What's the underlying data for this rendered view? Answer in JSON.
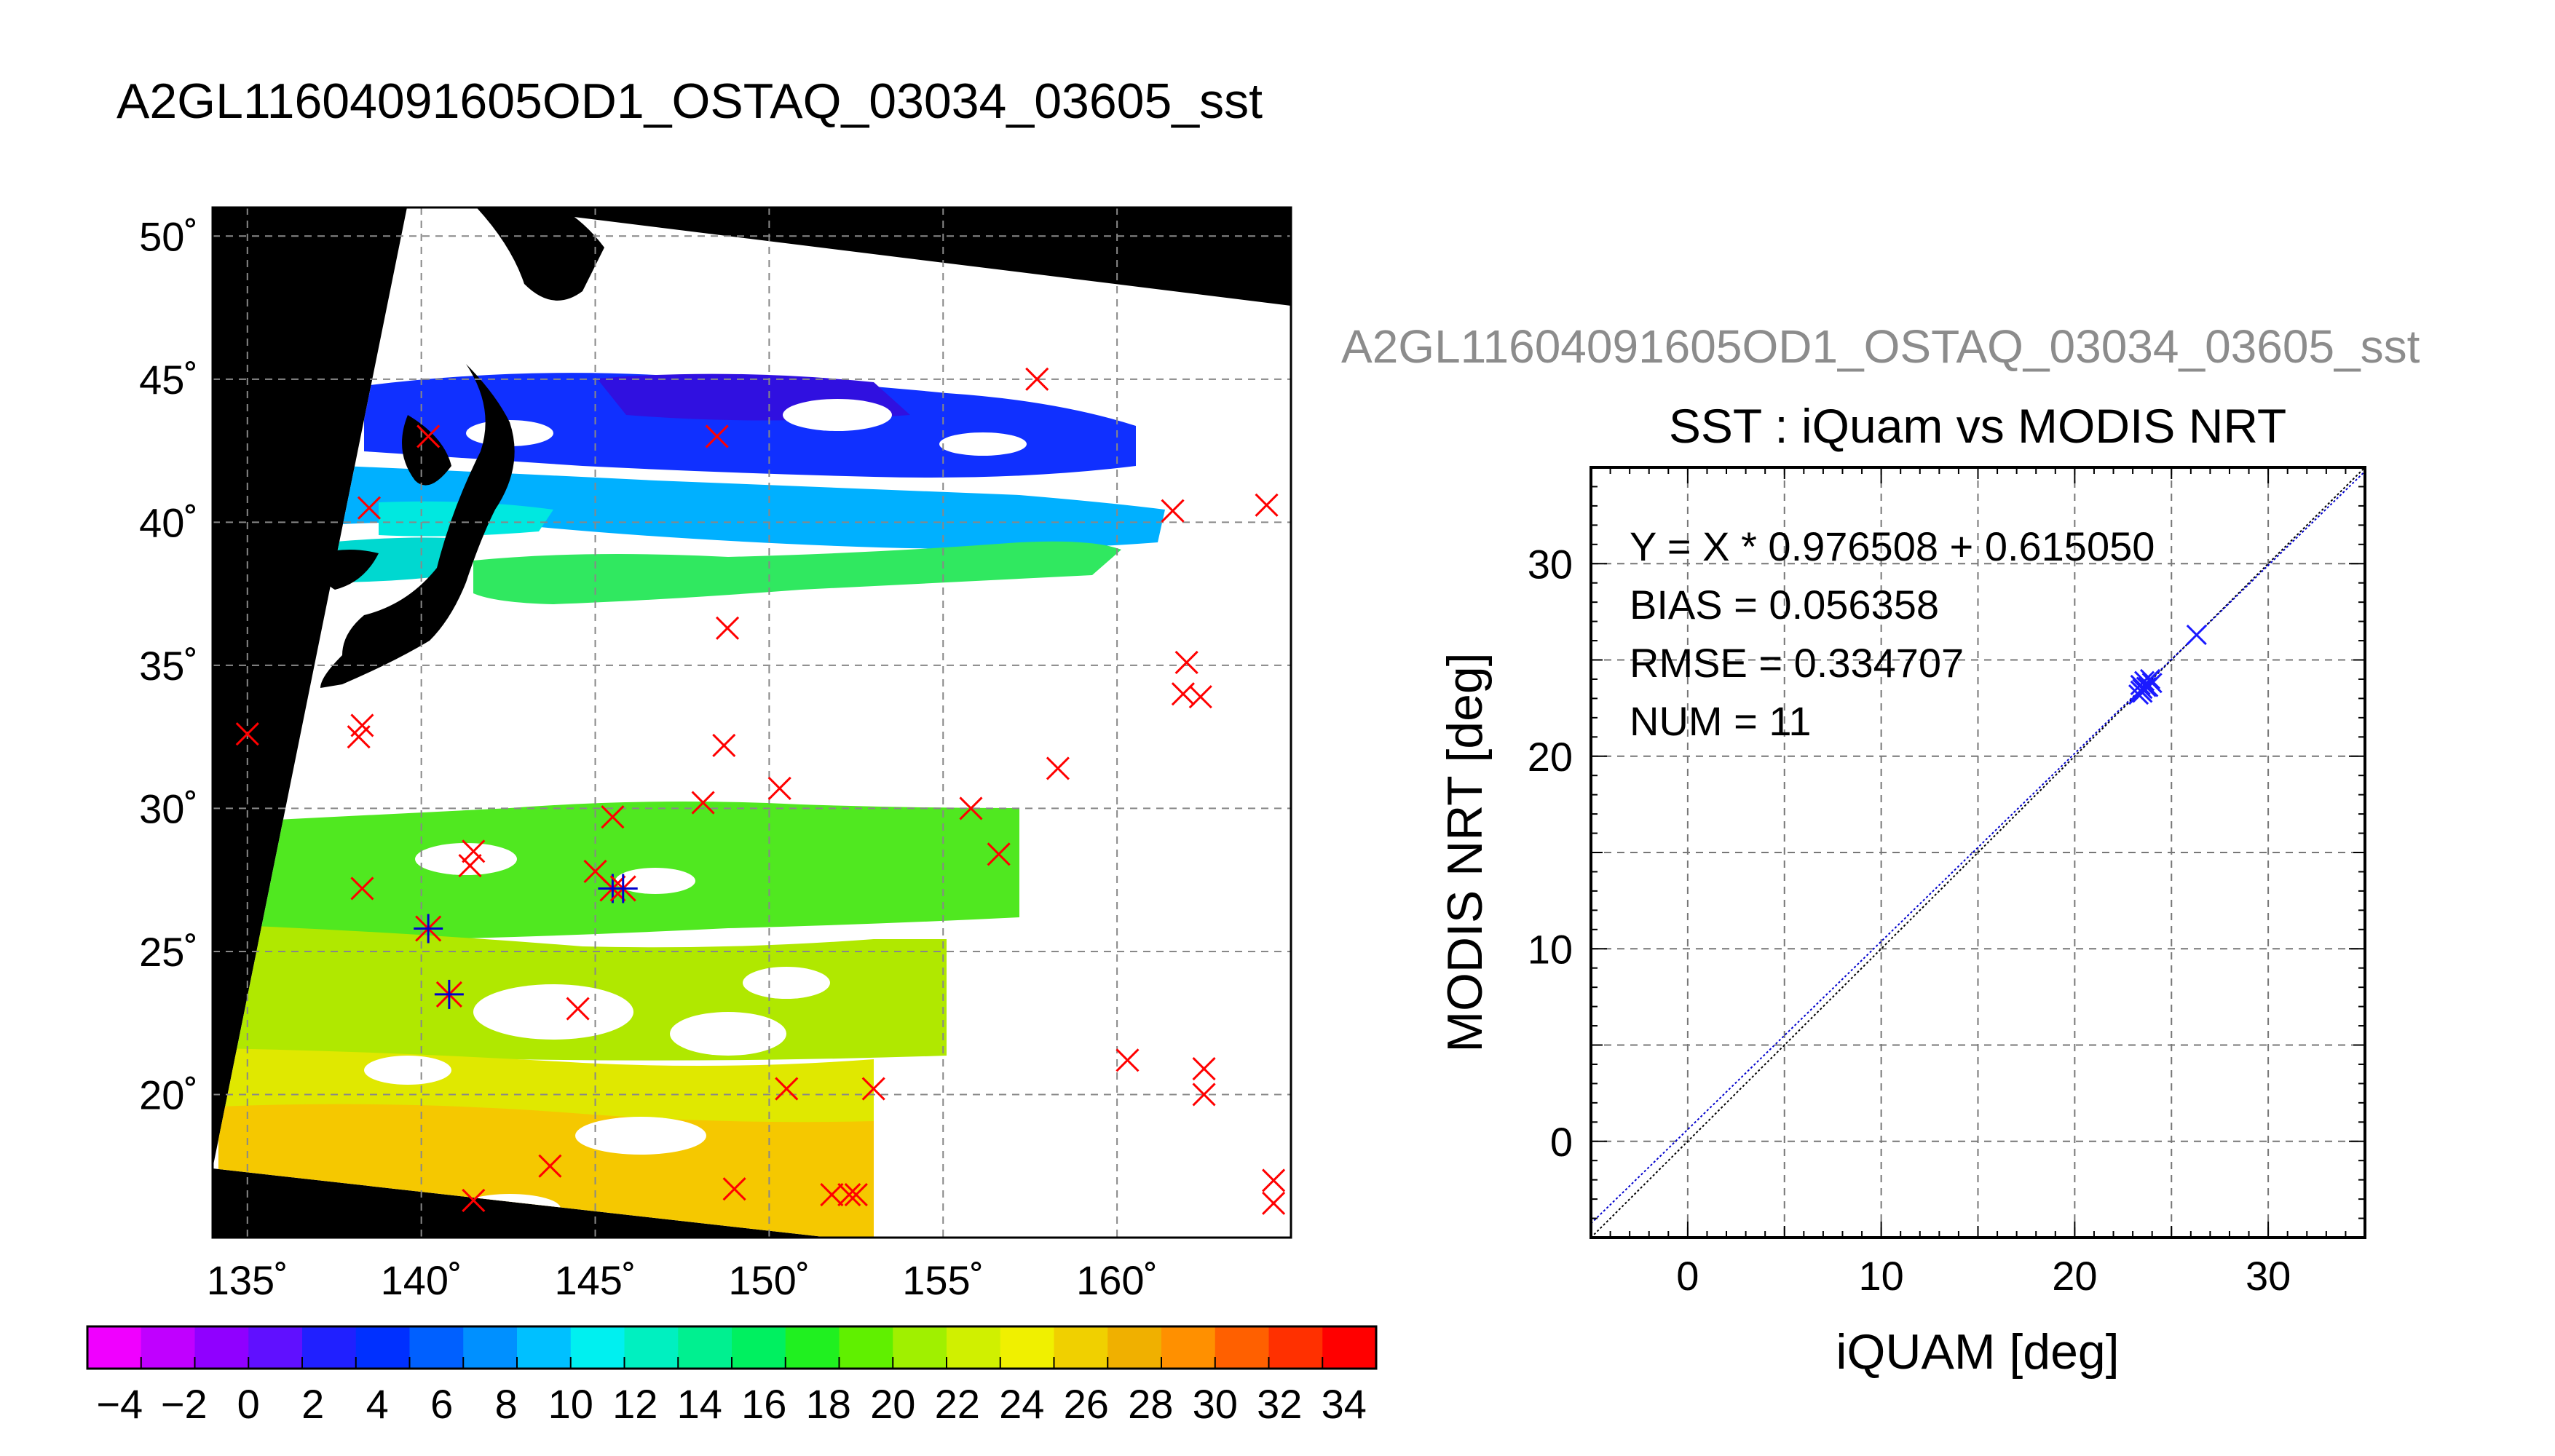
{
  "main_title": "A2GL11604091605OD1_OSTAQ_03034_03605_sst",
  "map": {
    "lon_ticks": [
      "135˚",
      "140˚",
      "145˚",
      "150˚",
      "155˚",
      "160˚"
    ],
    "lat_ticks": [
      "50˚",
      "45˚",
      "40˚",
      "35˚",
      "30˚",
      "25˚",
      "20˚"
    ],
    "colorbar": {
      "labels": [
        "−4",
        "−2",
        "0",
        "2",
        "4",
        "6",
        "8",
        "10",
        "12",
        "14",
        "16",
        "18",
        "20",
        "22",
        "24",
        "26",
        "28",
        "30",
        "32",
        "34"
      ],
      "colors": [
        "#f000ff",
        "#c000ff",
        "#9000ff",
        "#6010ff",
        "#2020ff",
        "#0030ff",
        "#0060ff",
        "#0090ff",
        "#00c0ff",
        "#00f0f0",
        "#00f0c0",
        "#00f090",
        "#00f060",
        "#20f020",
        "#60f000",
        "#a0f000",
        "#d0f000",
        "#f0f000",
        "#f0d000",
        "#f0b000",
        "#ff9000",
        "#ff6000",
        "#ff3000",
        "#ff0000"
      ]
    },
    "markers_red": [
      [
        135,
        32.6
      ],
      [
        138.2,
        32.5
      ],
      [
        138.3,
        32.9
      ],
      [
        138.3,
        27.2
      ],
      [
        138.5,
        40.5
      ],
      [
        140.2,
        43
      ],
      [
        141.4,
        28
      ],
      [
        141.5,
        28.5
      ],
      [
        141.5,
        16.3
      ],
      [
        143.7,
        17.5
      ],
      [
        144.5,
        23
      ],
      [
        145,
        27.8
      ],
      [
        145.5,
        29.7
      ],
      [
        148.1,
        30.2
      ],
      [
        148.5,
        43
      ],
      [
        148.7,
        32.2
      ],
      [
        148.8,
        36.3
      ],
      [
        149,
        16.7
      ],
      [
        150.3,
        30.7
      ],
      [
        150.5,
        20.2
      ],
      [
        151.8,
        16.5
      ],
      [
        152.3,
        16.5
      ],
      [
        152.5,
        16.5
      ],
      [
        153,
        20.2
      ],
      [
        155.8,
        30
      ],
      [
        156.6,
        28.4
      ],
      [
        157.7,
        45
      ],
      [
        158.3,
        31.4
      ],
      [
        160.3,
        21.2
      ],
      [
        161.6,
        40.4
      ],
      [
        161.9,
        34
      ],
      [
        162,
        35.1
      ],
      [
        162.4,
        33.9
      ],
      [
        162.5,
        20
      ],
      [
        162.5,
        20.9
      ],
      [
        164.3,
        40.6
      ],
      [
        164.5,
        17
      ],
      [
        164.5,
        16.2
      ]
    ],
    "markers_match": [
      [
        140.2,
        25.8
      ],
      [
        140.8,
        23.5
      ],
      [
        145.5,
        27.2
      ],
      [
        145.8,
        27.2
      ]
    ]
  },
  "scatter": {
    "header": "A2GL11604091605OD1_OSTAQ_03034_03605_sst",
    "title": "SST : iQuam vs MODIS NRT",
    "xlabel": "iQUAM [deg]",
    "ylabel": "MODIS NRT [deg]",
    "xticks": [
      "0",
      "10",
      "20",
      "30"
    ],
    "yticks": [
      "0",
      "10",
      "20",
      "30"
    ],
    "stats": {
      "fit": "Y = X * 0.976508 + 0.615050",
      "bias": "BIAS = 0.056358",
      "rmse": "RMSE = 0.334707",
      "num": "NUM = 11"
    }
  },
  "chart_data": [
    {
      "type": "heatmap",
      "title": "A2GL11604091605OD1_OSTAQ_03034_03605_sst",
      "xlabel": "",
      "ylabel": "",
      "xlim": [
        134,
        165
      ],
      "ylim": [
        15,
        51
      ],
      "x_ticks": [
        135,
        140,
        145,
        150,
        155,
        160
      ],
      "y_ticks": [
        20,
        25,
        30,
        35,
        40,
        45,
        50
      ],
      "colorbar_range": [
        -5,
        35
      ],
      "grid": true
    },
    {
      "type": "scatter",
      "title": "SST : iQuam vs MODIS NRT",
      "xlabel": "iQUAM [deg]",
      "ylabel": "MODIS NRT [deg]",
      "xlim": [
        -5,
        35
      ],
      "ylim": [
        -5,
        35
      ],
      "grid": true,
      "series": [
        {
          "x": [
            23.3,
            23.4,
            23.4,
            23.5,
            23.6,
            23.8,
            23.9,
            24.0,
            23.5,
            23.7,
            26.3
          ],
          "y": [
            23.2,
            23.4,
            23.7,
            23.5,
            23.9,
            23.6,
            24.0,
            23.8,
            23.3,
            23.6,
            26.3
          ]
        }
      ],
      "fit_line": {
        "slope": 0.976508,
        "intercept": 0.61505
      },
      "reference_line": {
        "slope": 1,
        "intercept": 0
      },
      "annotations": [
        "Y = X * 0.976508 + 0.615050",
        "BIAS = 0.056358",
        "RMSE = 0.334707",
        "NUM = 11"
      ]
    }
  ]
}
